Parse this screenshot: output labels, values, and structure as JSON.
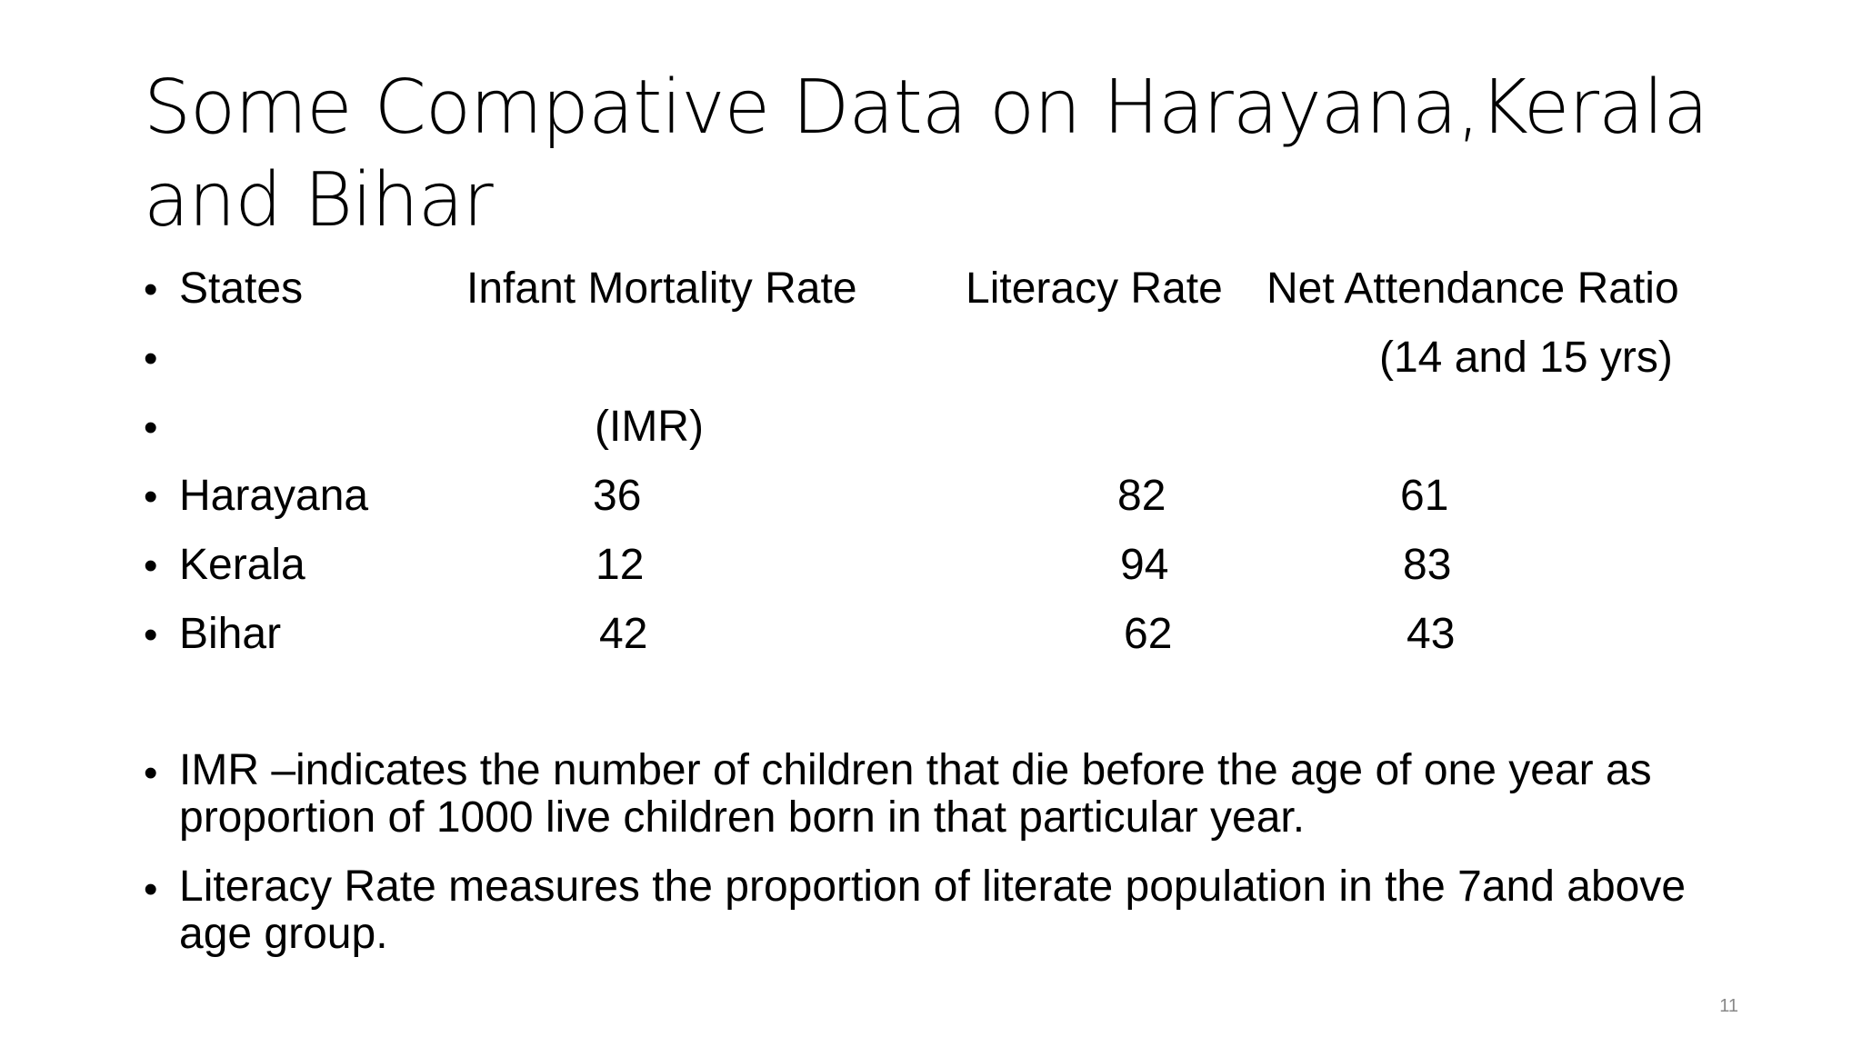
{
  "slide": {
    "title": "Some Compative Data on Harayana,Kerala\nand Bihar",
    "bullet_char": "•",
    "table": {
      "header": {
        "states": "States",
        "imr": "Infant Mortality Rate",
        "literacy": "Literacy Rate",
        "nar": "Net Attendance Ratio"
      },
      "nar_subheader": "(14 and 15 yrs)",
      "imr_subheader": "(IMR)",
      "rows": [
        {
          "state": "Harayana",
          "imr": "36",
          "literacy": "82",
          "nar": "61"
        },
        {
          "state": "Kerala",
          "imr": "12",
          "literacy": "94",
          "nar": "83"
        },
        {
          "state": "Bihar",
          "imr": "42",
          "literacy": "62",
          "nar": "43"
        }
      ]
    },
    "definitions": [
      "IMR –indicates the number of children that die before the age of one year as proportion of 1000 live children born in that particular year.",
      "Literacy Rate measures the proportion of literate population in the 7and above age group."
    ],
    "page_number": "11"
  }
}
